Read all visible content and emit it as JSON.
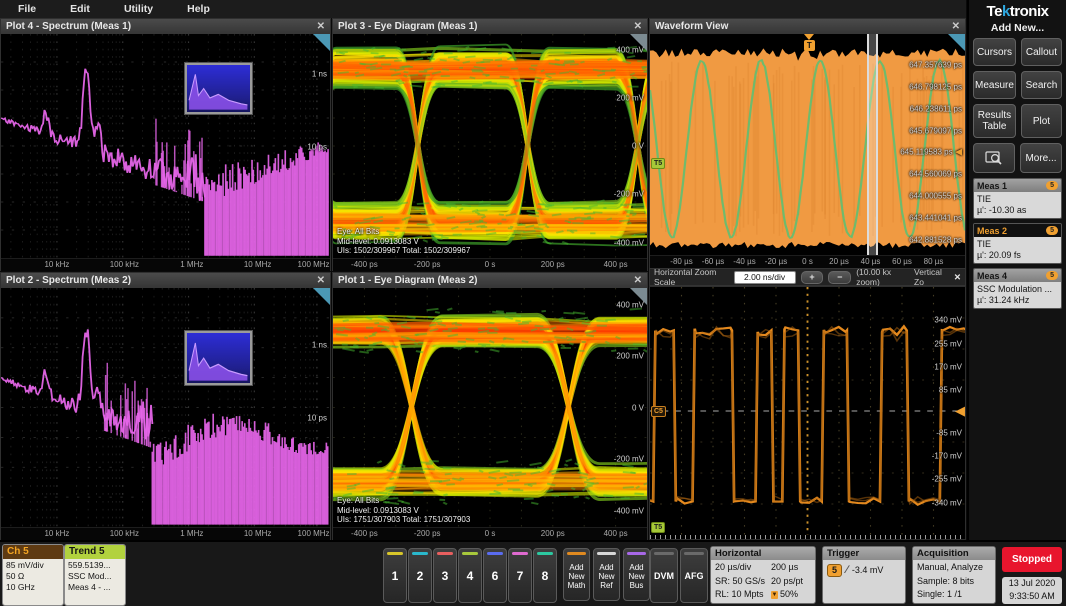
{
  "ui": {
    "close_glyph": "✕",
    "plus": "+",
    "minus": "−",
    "arrow_left": "◀",
    "trigger_pos_glyph": "▼"
  },
  "menu": {
    "items": [
      "File",
      "Edit",
      "Utility",
      "Help"
    ]
  },
  "plots": {
    "plot4": {
      "title": "Plot 4 - Spectrum (Meas 1)",
      "x_ticks": [
        "10 kHz",
        "100 kHz",
        "1 MHz",
        "10 MHz",
        "100 MHz"
      ],
      "y_ticks": [
        "1 ns",
        "10 ps"
      ]
    },
    "plot2": {
      "title": "Plot 2 - Spectrum (Meas 2)",
      "x_ticks": [
        "10 kHz",
        "100 kHz",
        "1 MHz",
        "10 MHz",
        "100 MHz"
      ],
      "y_ticks": [
        "1 ns",
        "10 ps"
      ]
    },
    "plot3": {
      "title": "Plot 3 - Eye Diagram (Meas 1)",
      "x_ticks": [
        "-400 ps",
        "-200 ps",
        "0 s",
        "200 ps",
        "400 ps"
      ],
      "y_ticks": [
        "400 mV",
        "200 mV",
        "0 V",
        "-200 mV",
        "-400 mV"
      ],
      "annotations": [
        "Eye: All Bits",
        "Mid-level: 0.0913083 V",
        "UIs: 1502/309967   Total:  1502/309967"
      ]
    },
    "plot1": {
      "title": "Plot 1 - Eye Diagram (Meas 2)",
      "x_ticks": [
        "-400 ps",
        "-200 ps",
        "0 s",
        "200 ps",
        "400 ps"
      ],
      "y_ticks": [
        "400 mV",
        "200 mV",
        "0 V",
        "-200 mV",
        "-400 mV"
      ],
      "annotations": [
        "Eye: All Bits",
        "Mid-level: 0.0913083 V",
        "UIs: 1751/307903   Total:  1751/307903"
      ]
    },
    "waveform": {
      "title": "Waveform View",
      "x_ticks": [
        "-80 µs",
        "-60 µs",
        "-40 µs",
        "-20 µs",
        "0 s",
        "20 µs",
        "40 µs",
        "60 µs",
        "80 µs"
      ],
      "y_ticks": [
        "647.357639 ps",
        "646.798125 ps",
        "646.238611 ps",
        "645.679097 ps",
        "645.119583 ps",
        "644.560069 ps",
        "644.000555 ps",
        "643.441041 ps",
        "642.881528 ps"
      ],
      "trigger_label": "T",
      "source_tag": "T5"
    },
    "zoombar": {
      "label": "Horizontal Zoom Scale",
      "value": "2.00 ns/div",
      "zoom_factor": "(10.00 kx zoom)",
      "vertical_label": "Vertical Zo"
    },
    "zoomview": {
      "y_ticks": [
        "340 mV",
        "255 mV",
        "170 mV",
        "85 mV",
        "-85 mV",
        "-170 mV",
        "-255 mV",
        "-340 mV"
      ],
      "channel_tag": "C5",
      "trend_tag": "T5"
    }
  },
  "sidebar": {
    "logo": "Tektronix",
    "add_new_label": "Add New...",
    "buttons": [
      "Cursors",
      "Callout",
      "Measure",
      "Search",
      "Results Table",
      "Plot"
    ],
    "more_label": "More...",
    "meas": [
      {
        "name": "Meas 1",
        "badge": "5",
        "type": "TIE",
        "value": "µ': -10.30 as",
        "active": false
      },
      {
        "name": "Meas 2",
        "badge": "5",
        "type": "TIE",
        "value": "µ': 20.09 fs",
        "active": true
      },
      {
        "name": "Meas 4",
        "badge": "5",
        "type": "SSC Modulation ...",
        "value": "µ': 31.24 kHz",
        "active": false
      }
    ]
  },
  "bottom": {
    "ch_badge": {
      "name": "Ch 5",
      "lines": [
        "85 mV/div",
        "50 Ω",
        "10 GHz"
      ]
    },
    "trend_badge": {
      "name": "Trend 5",
      "lines": [
        "559.5139...",
        "SSC Mod...",
        "Meas 4 - ..."
      ]
    },
    "channels": [
      {
        "label": "1",
        "color": "#d8c62a"
      },
      {
        "label": "2",
        "color": "#2ab8cc"
      },
      {
        "label": "3",
        "color": "#e85f5f"
      },
      {
        "label": "4",
        "color": "#a8c83c"
      },
      {
        "label": "6",
        "color": "#5a6cf0"
      },
      {
        "label": "7",
        "color": "#e06ad0"
      },
      {
        "label": "8",
        "color": "#2cc8a0"
      }
    ],
    "add_new": [
      {
        "label": "Add New Math",
        "color": "#e08a20"
      },
      {
        "label": "Add New Ref",
        "color": "#d8d8d8"
      },
      {
        "label": "Add New Bus",
        "color": "#a868e8"
      }
    ],
    "dvm_label": "DVM",
    "afg_label": "AFG",
    "horizontal": {
      "title": "Horizontal",
      "rows": [
        [
          "20 µs/div",
          "200 µs"
        ],
        [
          "SR: 50 GS/s",
          "20 ps/pt"
        ],
        [
          "RL: 10 Mpts",
          "50%"
        ]
      ]
    },
    "trigger": {
      "title": "Trigger",
      "source_badge": "5",
      "level": "-3.4 mV"
    },
    "acquisition": {
      "title": "Acquisition",
      "lines": [
        "Manual,   Analyze",
        "Sample: 8 bits",
        "Single: 1 /1"
      ]
    },
    "stopped_label": "Stopped",
    "date": "13 Jul 2020",
    "time": "9:33:50 AM"
  }
}
